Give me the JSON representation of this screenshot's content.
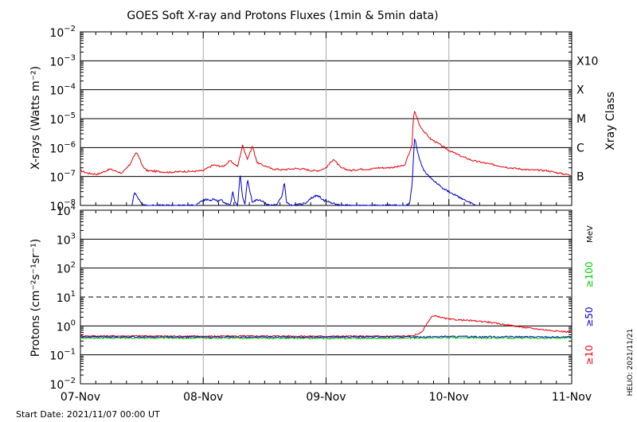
{
  "chart_data": [
    {
      "type": "line",
      "title": "GOES Soft X-ray and Protons Fluxes   (1min & 5min data)",
      "ylabel": "X-rays (Watts m⁻²)",
      "yscale": "log",
      "ylim": [
        1e-08,
        0.01
      ],
      "ytick_exponents": [
        -2,
        -3,
        -4,
        -5,
        -6,
        -7,
        -8
      ],
      "grid": true,
      "right_axis_label": "Xray Class",
      "class_labels": [
        {
          "label": "X10",
          "value": 0.001
        },
        {
          "label": "X",
          "value": 0.0001
        },
        {
          "label": "M",
          "value": 1e-05
        },
        {
          "label": "C",
          "value": 1e-06
        },
        {
          "label": "B",
          "value": 1e-07
        }
      ],
      "series": [
        {
          "color": "#e8000b",
          "x": [
            0,
            0.06,
            0.14,
            0.24,
            0.34,
            0.4,
            0.44,
            0.46,
            0.48,
            0.5,
            0.54,
            0.62,
            0.72,
            0.84,
            0.92,
            1.0,
            1.08,
            1.16,
            1.22,
            1.28,
            1.32,
            1.36,
            1.4,
            1.44,
            1.48,
            1.52,
            1.56,
            1.6,
            1.64,
            1.7,
            1.76,
            1.82,
            1.88,
            1.94,
            2.0,
            2.06,
            2.12,
            2.2,
            2.28,
            2.36,
            2.42,
            2.48,
            2.56,
            2.64,
            2.7,
            2.71,
            2.72,
            2.74,
            2.76,
            2.8,
            2.85,
            2.9,
            2.95,
            3.0,
            3.1,
            3.2,
            3.35,
            3.5,
            3.65,
            3.8,
            3.9,
            4.0
          ],
          "y": [
            1.6e-07,
            1.3e-07,
            1.2e-07,
            1.8e-07,
            1.3e-07,
            2.5e-07,
            5.5e-07,
            6.5e-07,
            4.5e-07,
            2.5e-07,
            1.6e-07,
            1.5e-07,
            1.4e-07,
            1.5e-07,
            1.5e-07,
            1.6e-07,
            2.5e-07,
            2.2e-07,
            3.5e-07,
            2.2e-07,
            1.2e-06,
            4e-07,
            1.1e-06,
            3e-07,
            2.5e-07,
            2.2e-07,
            1.8e-07,
            1.8e-07,
            1.7e-07,
            1.8e-07,
            1.9e-07,
            1.8e-07,
            1.6e-07,
            1.6e-07,
            2e-07,
            4e-07,
            2e-07,
            1.6e-07,
            1.8e-07,
            1.8e-07,
            2e-07,
            2e-07,
            2.1e-07,
            2.4e-07,
            1.2e-06,
            1e-05,
            1.8e-05,
            1.1e-05,
            6e-06,
            3.5e-06,
            2e-06,
            1.5e-06,
            1.1e-06,
            8e-07,
            5e-07,
            3.5e-07,
            2.6e-07,
            2e-07,
            1.7e-07,
            1.6e-07,
            1.3e-07,
            1.1e-07
          ]
        },
        {
          "color": "#0000cc",
          "x": [
            0.42,
            0.44,
            0.46,
            0.48,
            0.5,
            0.52,
            0.6,
            0.94,
            0.96,
            1.02,
            1.06,
            1.08,
            1.12,
            1.14,
            1.18,
            1.22,
            1.24,
            1.26,
            1.28,
            1.3,
            1.32,
            1.34,
            1.36,
            1.38,
            1.4,
            1.44,
            1.48,
            1.52,
            1.55,
            1.6,
            1.64,
            1.66,
            1.68,
            1.72,
            1.84,
            1.88,
            1.92,
            1.95,
            1.98,
            2.12,
            2.5,
            2.66,
            2.68,
            2.7,
            2.71,
            2.72,
            2.73,
            2.74,
            2.76,
            2.8,
            2.85,
            2.9,
            2.95,
            3.0,
            3.05,
            3.1,
            3.14,
            3.18,
            3.22
          ],
          "y": [
            1e-08,
            2.8e-08,
            2.2e-08,
            1.5e-08,
            1.2e-08,
            1e-08,
            1e-08,
            1e-08,
            1.2e-08,
            1.6e-08,
            1.5e-08,
            1.7e-08,
            1.4e-08,
            1.6e-08,
            1.2e-08,
            1e-08,
            3e-08,
            1.2e-08,
            1e-08,
            1.2e-07,
            2e-08,
            1.1e-08,
            8e-08,
            3e-08,
            1.3e-08,
            1.6e-08,
            1.4e-08,
            1.1e-08,
            1e-08,
            1.1e-08,
            2e-08,
            6e-08,
            1.2e-08,
            1e-08,
            1.2e-08,
            1.8e-08,
            2.2e-08,
            2e-08,
            1.5e-08,
            1e-08,
            1e-08,
            1e-08,
            1.2e-08,
            5e-08,
            3e-07,
            2e-06,
            1.5e-06,
            9e-07,
            4e-07,
            1.5e-07,
            9e-08,
            6e-08,
            4e-08,
            3e-08,
            2.3e-08,
            1.8e-08,
            1.4e-08,
            1.2e-08,
            1e-08
          ]
        }
      ]
    },
    {
      "type": "line",
      "ylabel": "Protons (cm⁻²s⁻¹sr⁻¹)",
      "yscale": "log",
      "ylim": [
        0.01,
        10000
      ],
      "ytick_exponents": [
        4,
        3,
        2,
        1,
        0,
        -1,
        -2
      ],
      "grid": true,
      "threshold": 10,
      "right_axis_label": "MeV",
      "energy_labels": [
        {
          "label": "≥10",
          "color": "#e8000b"
        },
        {
          "label": "≥50",
          "color": "#0000cc"
        },
        {
          "label": "≥100",
          "color": "#00cc00"
        }
      ],
      "series": [
        {
          "name": "≥10",
          "color": "#e8000b",
          "x": [
            0,
            0.5,
            1.0,
            1.5,
            2.0,
            2.5,
            2.7,
            2.78,
            2.82,
            2.86,
            2.9,
            2.95,
            3.0,
            3.1,
            3.2,
            3.3,
            3.4,
            3.5,
            3.6,
            3.7,
            3.8,
            3.9,
            4.0
          ],
          "y": [
            0.45,
            0.45,
            0.44,
            0.45,
            0.44,
            0.44,
            0.45,
            0.6,
            1.2,
            2.1,
            2.2,
            1.9,
            1.7,
            1.6,
            1.5,
            1.4,
            1.2,
            1.05,
            0.9,
            0.8,
            0.72,
            0.65,
            0.62
          ]
        },
        {
          "name": "≥50",
          "color": "#0000cc",
          "x": [
            0,
            1.0,
            2.0,
            2.8,
            3.0,
            3.5,
            4.0
          ],
          "y": [
            0.42,
            0.41,
            0.41,
            0.42,
            0.43,
            0.42,
            0.41
          ]
        },
        {
          "name": "≥100",
          "color": "#00cc00",
          "x": [
            0,
            1.0,
            2.0,
            2.8,
            3.0,
            3.5,
            4.0
          ],
          "y": [
            0.38,
            0.38,
            0.37,
            0.38,
            0.39,
            0.38,
            0.38
          ]
        }
      ]
    }
  ],
  "x_axis": {
    "tick_labels": [
      "07-Nov",
      "08-Nov",
      "09-Nov",
      "10-Nov",
      "11-Nov"
    ],
    "start_label": "Start Date: 2021/11/07 00:00 UT"
  },
  "footer": {
    "helio": "HELIO: 2021/11/21"
  }
}
